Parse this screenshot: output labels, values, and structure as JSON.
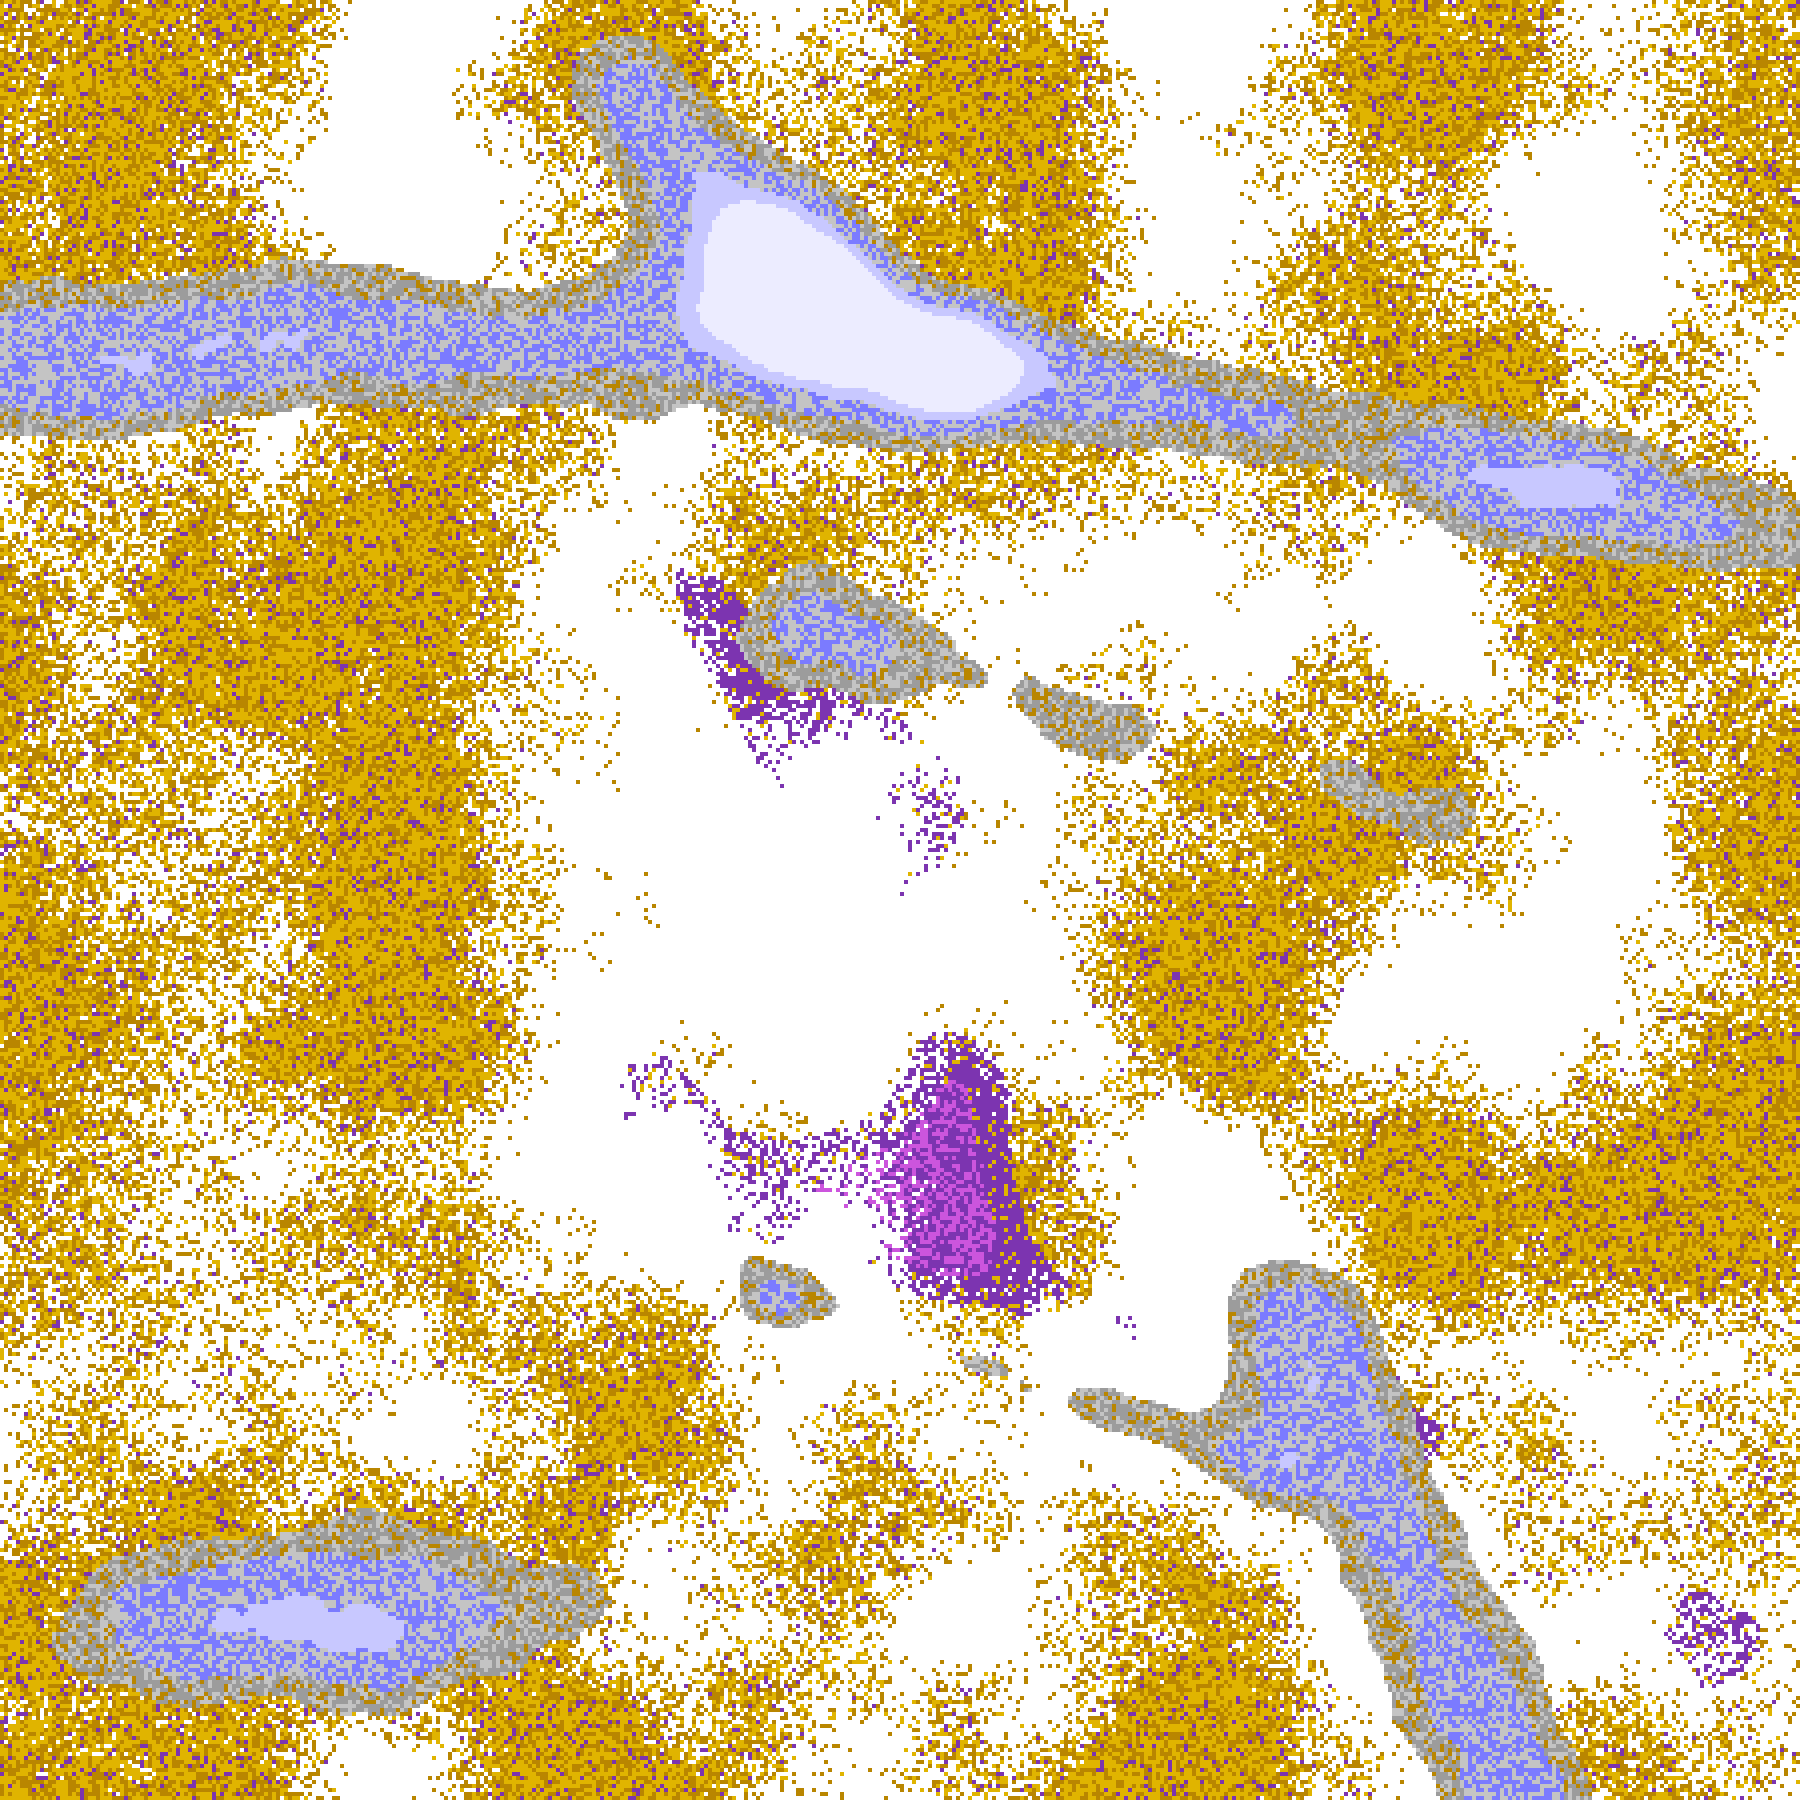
{
  "map": {
    "type": "classified-raster",
    "palette": {
      "background": "#ffffff",
      "gold": "#e0b400",
      "dark_gold": "#b98600",
      "purple": "#7c34b0",
      "magenta": "#cc55dd",
      "gray": "#9c9c9c",
      "light_gray": "#c4c4c4",
      "periwinkle": "#7b7bff",
      "lavender": "#c8c8ff",
      "pale_lavender": "#ececff"
    }
  }
}
